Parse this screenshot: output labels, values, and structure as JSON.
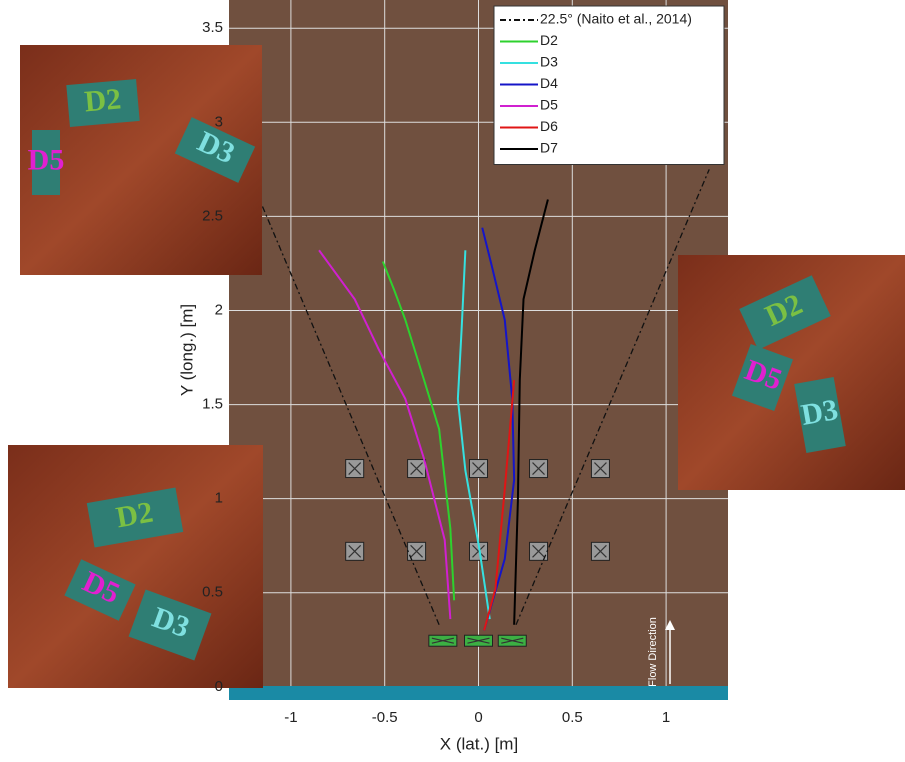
{
  "chart_data": {
    "type": "line",
    "xlabel": "X (lat.) [m]",
    "ylabel": "Y (long.) [m]",
    "xlim": [
      -1.33,
      1.33
    ],
    "ylim": [
      -0.07,
      3.65
    ],
    "xticks": [
      -1,
      -0.5,
      0,
      0.5,
      1
    ],
    "yticks": [
      0,
      0.5,
      1,
      1.5,
      2,
      2.5,
      3,
      3.5
    ],
    "grid": true,
    "legend": "upper right",
    "series": [
      {
        "name": "22.5° (Naito et al., 2014)",
        "color": "#111111",
        "dash": "6,3,2,3",
        "x": [
          -0.21,
          -1.18,
          null,
          0.2,
          1.23
        ],
        "y": [
          0.33,
          2.62,
          null,
          0.33,
          2.75
        ]
      },
      {
        "name": "D2",
        "color": "#2ed12e",
        "x": [
          -0.13,
          -0.15,
          -0.21,
          -0.29,
          -0.39,
          -0.45,
          -0.51
        ],
        "y": [
          0.46,
          0.84,
          1.37,
          1.63,
          1.95,
          2.11,
          2.26
        ]
      },
      {
        "name": "D3",
        "color": "#35e0e0",
        "x": [
          0.06,
          0.005,
          -0.07,
          -0.11,
          -0.09,
          -0.07
        ],
        "y": [
          0.36,
          0.73,
          1.15,
          1.53,
          1.9,
          2.32
        ]
      },
      {
        "name": "D4",
        "color": "#1515c8",
        "x": [
          0.03,
          0.14,
          0.19,
          0.18,
          0.14,
          0.07,
          0.02
        ],
        "y": [
          0.3,
          0.68,
          1.1,
          1.53,
          1.95,
          2.24,
          2.44
        ]
      },
      {
        "name": "D5",
        "color": "#d020d0",
        "x": [
          -0.15,
          -0.18,
          -0.29,
          -0.39,
          -0.53,
          -0.66,
          -0.85
        ],
        "y": [
          0.36,
          0.78,
          1.21,
          1.53,
          1.79,
          2.06,
          2.32
        ]
      },
      {
        "name": "D6",
        "color": "#e01515",
        "x": [
          0.03,
          0.09,
          0.14,
          0.19
        ],
        "y": [
          0.3,
          0.52,
          1.05,
          1.63
        ]
      },
      {
        "name": "D7",
        "color": "#000000",
        "x": [
          0.19,
          0.21,
          0.22,
          0.24,
          0.3,
          0.37
        ],
        "y": [
          0.33,
          0.99,
          1.63,
          2.06,
          2.32,
          2.59
        ]
      }
    ],
    "obstacles": {
      "x": [
        -0.66,
        -0.33,
        0,
        0.32,
        0.65,
        -0.66,
        -0.33,
        0,
        0.32,
        0.65
      ],
      "y": [
        1.16,
        1.16,
        1.16,
        1.16,
        1.16,
        0.72,
        0.72,
        0.72,
        0.72,
        0.72
      ]
    },
    "start_boxes": {
      "x": [
        -0.19,
        0,
        0.18
      ],
      "y": [
        0.245,
        0.245,
        0.245
      ]
    },
    "flow_label": "Flow Direction",
    "insets": [
      {
        "labels": [
          "D2",
          "D5",
          "D3"
        ]
      },
      {
        "labels": [
          "D2",
          "D5",
          "D3"
        ]
      },
      {
        "labels": [
          "D2",
          "D5",
          "D3"
        ]
      }
    ]
  }
}
